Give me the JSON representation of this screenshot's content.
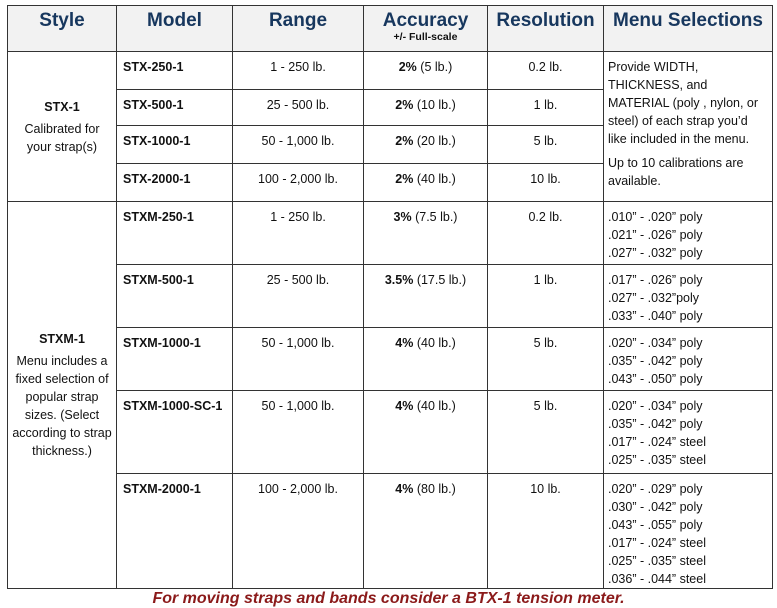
{
  "headers": {
    "style": "Style",
    "model": "Model",
    "range": "Range",
    "accuracy": "Accuracy",
    "accuracy_sub": "+/- Full-scale",
    "resolution": "Resolution",
    "menu": "Menu Selections"
  },
  "groups": {
    "stx": {
      "name": "STX-1",
      "desc": "Calibrated for your strap(s)",
      "menu_text": "Provide WIDTH, THICKNESS, and MATERIAL (poly , nylon, or steel) of each strap you’d like included in the menu.",
      "menu_note": "Up to 10 calibrations are available.",
      "rows": [
        {
          "model": "STX-250-1",
          "range": "1 - 250 lb.",
          "acc_pct": "2%",
          "acc_val": "(5 lb.)",
          "res": "0.2 lb."
        },
        {
          "model": "STX-500-1",
          "range": "25 - 500 lb.",
          "acc_pct": "2%",
          "acc_val": "(10 lb.)",
          "res": "1 lb."
        },
        {
          "model": "STX-1000-1",
          "range": "50 - 1,000 lb.",
          "acc_pct": "2%",
          "acc_val": "(20 lb.)",
          "res": "5 lb."
        },
        {
          "model": "STX-2000-1",
          "range": "100 - 2,000 lb.",
          "acc_pct": "2%",
          "acc_val": "(40 lb.)",
          "res": "10 lb."
        }
      ]
    },
    "stxm": {
      "name": "STXM-1",
      "desc": "Menu includes a fixed selection of popular strap sizes. (Select according to strap thickness.)",
      "rows": [
        {
          "model": "STXM-250-1",
          "range": "1 - 250 lb.",
          "acc_pct": "3%",
          "acc_val": "(7.5 lb.)",
          "res": "0.2 lb.",
          "menu": [
            ".010” - .020” poly",
            ".021” - .026” poly",
            ".027” - .032” poly"
          ]
        },
        {
          "model": "STXM-500-1",
          "range": "25 - 500 lb.",
          "acc_pct": "3.5%",
          "acc_val": "(17.5 lb.)",
          "res": "1 lb.",
          "menu": [
            ".017” - .026” poly",
            ".027” - .032”poly",
            ".033” - .040” poly"
          ]
        },
        {
          "model": "STXM-1000-1",
          "range": "50 - 1,000 lb.",
          "acc_pct": "4%",
          "acc_val": "(40 lb.)",
          "res": "5 lb.",
          "menu": [
            ".020” - .034” poly",
            ".035” - .042” poly",
            ".043” - .050” poly"
          ]
        },
        {
          "model": "STXM-1000-SC-1",
          "range": "50 - 1,000 lb.",
          "acc_pct": "4%",
          "acc_val": "(40 lb.)",
          "res": "5 lb.",
          "menu": [
            ".020” - .034” poly",
            ".035” - .042” poly",
            ".017” - .024” steel",
            ".025” - .035” steel"
          ]
        },
        {
          "model": "STXM-2000-1",
          "range": "100 - 2,000 lb.",
          "acc_pct": "4%",
          "acc_val": "(80 lb.)",
          "res": "10 lb.",
          "menu": [
            ".020” - .029” poly",
            ".030” - .042” poly",
            ".043” - .055” poly",
            ".017” - .024” steel",
            ".025” - .035” steel",
            ".036” - .044” steel"
          ]
        }
      ]
    }
  },
  "footer": "For moving straps and bands consider a BTX-1 tension meter.",
  "colors": {
    "header_text": "#17375e",
    "footer_text": "#8b1a1a"
  }
}
